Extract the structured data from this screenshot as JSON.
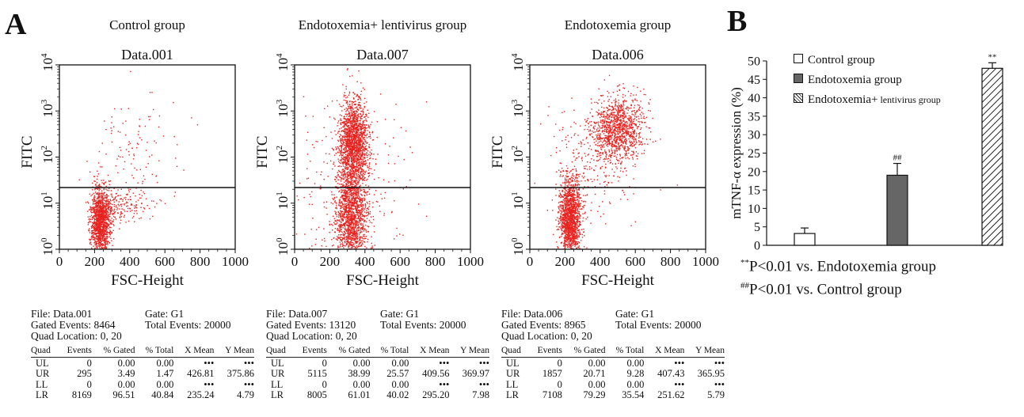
{
  "panel_a": {
    "letter": "A",
    "plots": [
      {
        "group_title": "Control group",
        "plot_title": "Data.001",
        "xlabel": "FSC-Height",
        "ylabel": "FITC",
        "xticks": [
          "0",
          "200",
          "400",
          "600",
          "800",
          "1000"
        ],
        "file_line": "File: Data.001",
        "gate_line": "Gate: G1",
        "gated_line": "Gated Events: 8464",
        "total_line": "Total Events: 20000",
        "quad_line": "Quad Location: 0, 20",
        "table_headers": [
          "Quad",
          "Events",
          "% Gated",
          "% Total",
          "X Mean",
          "Y Mean"
        ],
        "rows": [
          [
            "UL",
            "0",
            "0.00",
            "0.00",
            "•••",
            "•••"
          ],
          [
            "UR",
            "295",
            "3.49",
            "1.47",
            "426.81",
            "375.86"
          ],
          [
            "LL",
            "0",
            "0.00",
            "0.00",
            "•••",
            "•••"
          ],
          [
            "LR",
            "8169",
            "96.51",
            "40.84",
            "235.24",
            "4.79"
          ]
        ]
      },
      {
        "group_title": "Endotoxemia+ lentivirus group",
        "plot_title": "Data.007",
        "xlabel": "FSC-Height",
        "ylabel": "FITC",
        "xticks": [
          "0",
          "200",
          "400",
          "600",
          "800",
          "1000"
        ],
        "file_line": "File: Data.007",
        "gate_line": "Gate: G1",
        "gated_line": "Gated Events: 13120",
        "total_line": "Total Events: 20000",
        "quad_line": "Quad Location: 0, 20",
        "table_headers": [
          "Quad",
          "Events",
          "% Gated",
          "% Total",
          "X Mean",
          "Y Mean"
        ],
        "rows": [
          [
            "UL",
            "0",
            "0.00",
            "0.00",
            "•••",
            "•••"
          ],
          [
            "UR",
            "5115",
            "38.99",
            "25.57",
            "409.56",
            "369.97"
          ],
          [
            "LL",
            "0",
            "0.00",
            "0.00",
            "•••",
            "•••"
          ],
          [
            "LR",
            "8005",
            "61.01",
            "40.02",
            "295.20",
            "7.98"
          ]
        ]
      },
      {
        "group_title": "Endotoxemia group",
        "plot_title": "Data.006",
        "xlabel": "FSC-Height",
        "ylabel": "FITC",
        "xticks": [
          "0",
          "200",
          "400",
          "600",
          "800",
          "1000"
        ],
        "file_line": "File: Data.006",
        "gate_line": "Gate: G1",
        "gated_line": "Gated Events: 8965",
        "total_line": "Total Events: 20000",
        "quad_line": "Quad Location: 0, 20",
        "table_headers": [
          "Quad",
          "Events",
          "% Gated",
          "% Total",
          "X Mean",
          "Y Mean"
        ],
        "rows": [
          [
            "UL",
            "0",
            "0.00",
            "0.00",
            "•••",
            "•••"
          ],
          [
            "UR",
            "1857",
            "20.71",
            "9.28",
            "407.43",
            "365.95"
          ],
          [
            "LL",
            "0",
            "0.00",
            "0.00",
            "•••",
            "•••"
          ],
          [
            "LR",
            "7108",
            "79.29",
            "35.54",
            "251.62",
            "5.79"
          ]
        ]
      }
    ],
    "scatter_color": "#e8231f"
  },
  "panel_b": {
    "letter": "B",
    "note_ctrl_marker": "##",
    "note_ctrl_text": "P<0.01 vs. Control group",
    "note_endo_marker": "**",
    "note_endo_text": "P<0.01 vs. Endotoxemia group",
    "legend": [
      {
        "text": "Control group",
        "small": "",
        "fill": "white"
      },
      {
        "text": "Endotoxemia group",
        "small": "",
        "fill": "gray"
      },
      {
        "text": "Endotoxemia+",
        "small": " lentivirus group",
        "fill": "hatch"
      }
    ]
  },
  "chart_data": {
    "type": "bar",
    "categories": [
      "Control group",
      "Endotoxemia group",
      "Endotoxemia+ lentivirus group"
    ],
    "values": [
      3.2,
      19,
      48
    ],
    "errors": [
      1.5,
      3.2,
      1.5
    ],
    "annotations": [
      "",
      "##",
      "**"
    ],
    "fills": [
      "white",
      "gray",
      "hatch"
    ],
    "ylabel": "mTNF-α expression (%)",
    "ylim": [
      0,
      50
    ],
    "yticks": [
      0,
      5,
      10,
      15,
      20,
      25,
      30,
      35,
      40,
      45,
      50
    ],
    "bar_gray": "#666666"
  }
}
